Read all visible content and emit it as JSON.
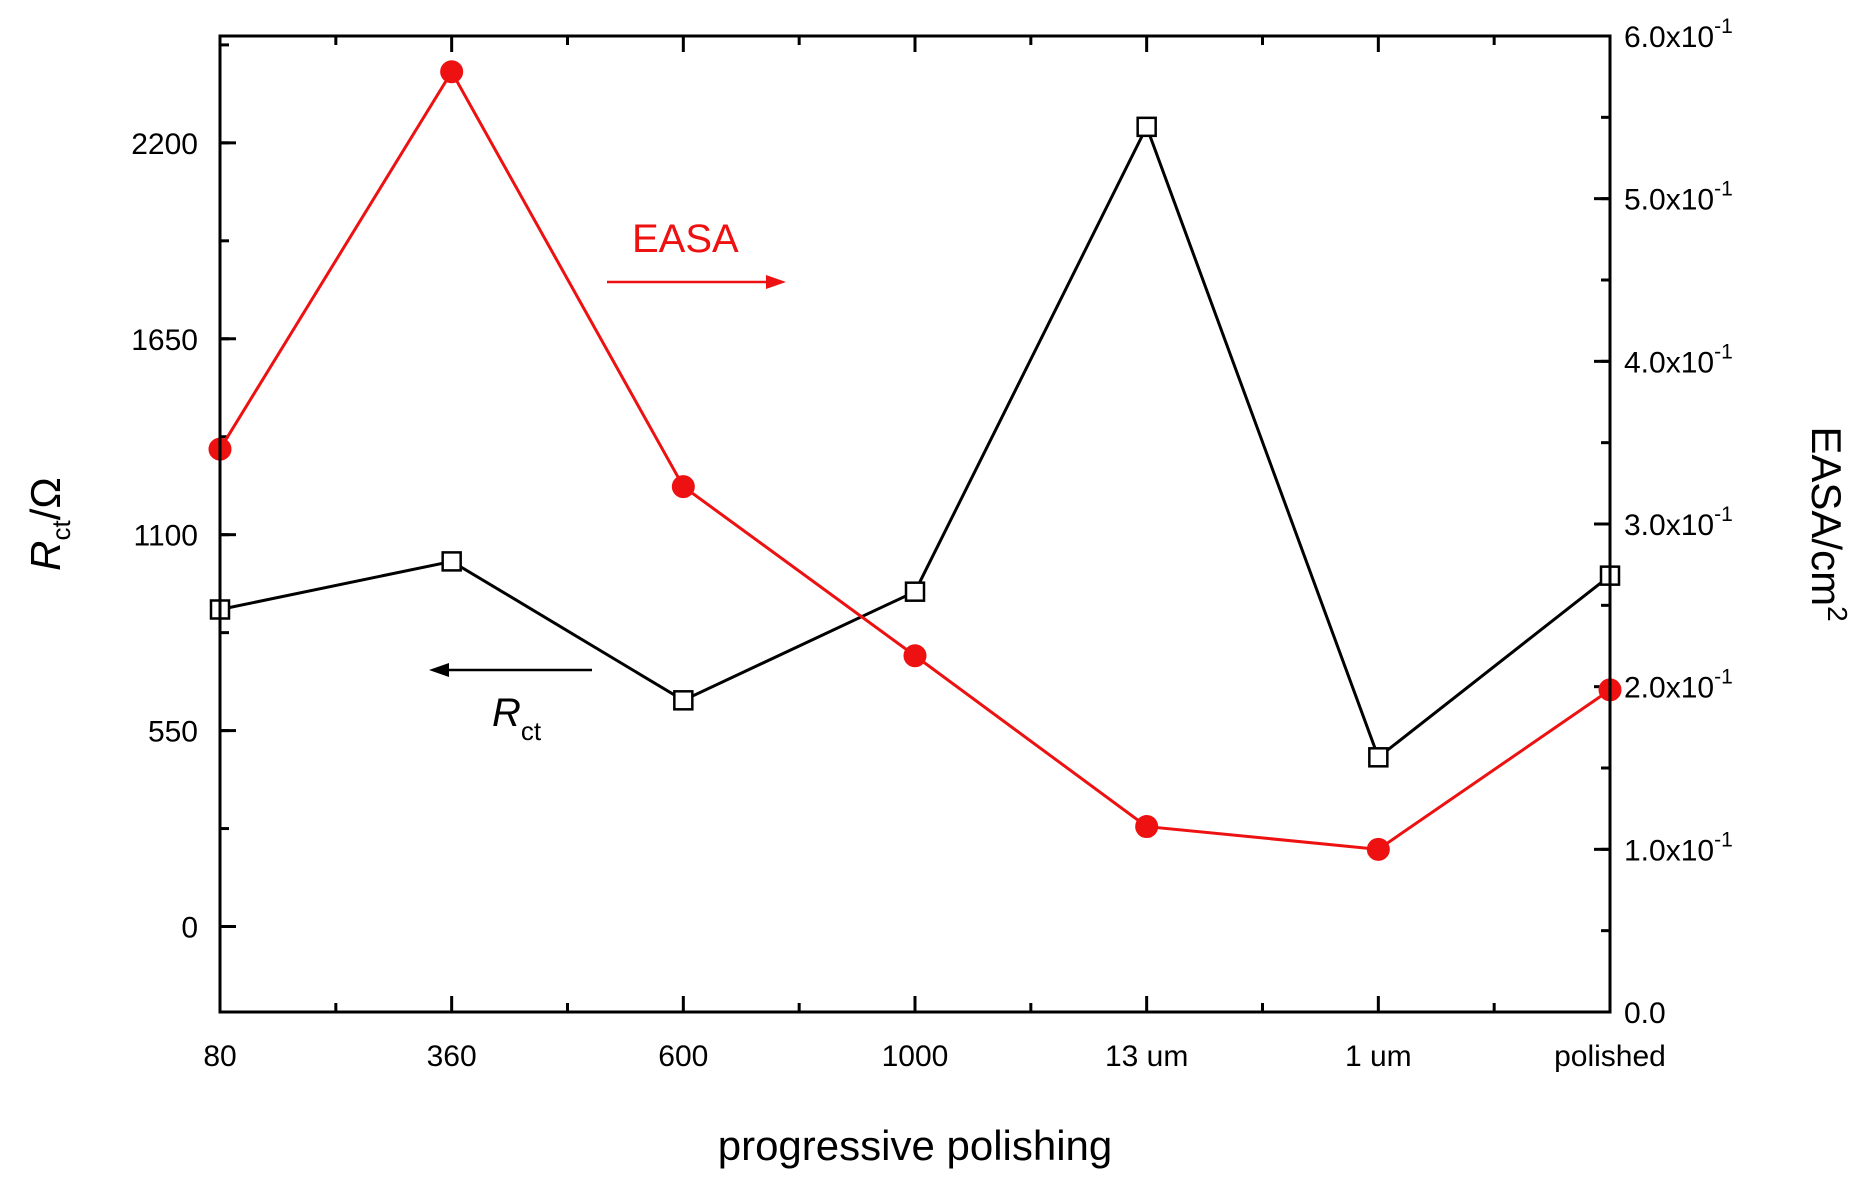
{
  "chart_data": {
    "type": "line",
    "title": "",
    "xlabel": "progressive polishing",
    "ylabel_left": {
      "main": "R",
      "sub": "ct",
      "unit": "/Ω"
    },
    "ylabel_right": {
      "main": "EASA/cm",
      "sup": "2"
    },
    "categories": [
      "80",
      "360",
      "600",
      "1000",
      "13 um",
      "1 um",
      "polished"
    ],
    "y_left": {
      "range": [
        -240,
        2500
      ],
      "ticks": [
        0,
        550,
        1100,
        1650,
        2200
      ],
      "tick_labels": [
        "0",
        "550",
        "1100",
        "1650",
        "2200"
      ],
      "minor_step": 275
    },
    "y_right": {
      "range": [
        0.0,
        0.6
      ],
      "ticks": [
        0.0,
        0.1,
        0.2,
        0.3,
        0.4,
        0.5,
        0.6
      ],
      "tick_labels": [
        {
          "base": "0.0",
          "exp": ""
        },
        {
          "base": "1.0x10",
          "exp": "-1"
        },
        {
          "base": "2.0x10",
          "exp": "-1"
        },
        {
          "base": "3.0x10",
          "exp": "-1"
        },
        {
          "base": "4.0x10",
          "exp": "-1"
        },
        {
          "base": "5.0x10",
          "exp": "-1"
        },
        {
          "base": "6.0x10",
          "exp": "-1"
        }
      ],
      "minor_step": 0.05
    },
    "series": [
      {
        "name": "Rct",
        "axis": "left",
        "color": "#000000",
        "marker": "open-square",
        "values": [
          890,
          1025,
          635,
          940,
          2245,
          475,
          985
        ]
      },
      {
        "name": "EASA",
        "axis": "right",
        "color": "#ee1111",
        "marker": "filled-circle",
        "values": [
          0.346,
          0.578,
          0.323,
          0.219,
          0.114,
          0.1,
          0.198
        ]
      }
    ],
    "annotations": [
      {
        "text": "EASA",
        "color": "#ee1111",
        "arrow": "right",
        "target_axis": "right"
      },
      {
        "text_main": "R",
        "text_sub": "ct",
        "color": "#000000",
        "arrow": "left",
        "target_axis": "left"
      }
    ]
  }
}
